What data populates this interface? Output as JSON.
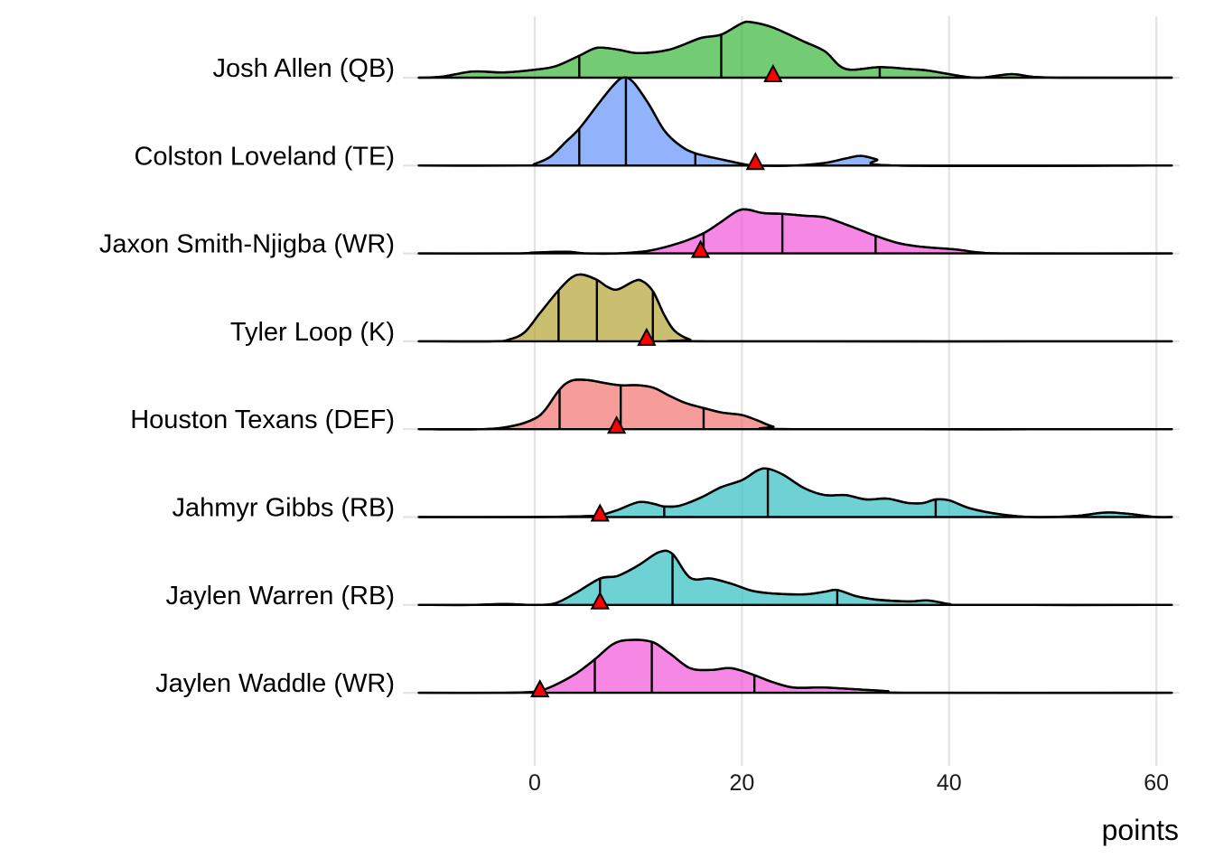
{
  "chart_data": {
    "type": "ridgeline-density",
    "title": "",
    "xlabel": "points",
    "ylabel": "",
    "xlim": [
      -11.2,
      61.5
    ],
    "x_ticks": [
      0,
      20,
      40,
      60
    ],
    "x_tick_labels": [
      "0",
      "20",
      "40",
      "60"
    ],
    "grid": "vertical major gridlines",
    "legend": "none",
    "marker_shape": "triangle",
    "marker_color": "#ff0000",
    "series": [
      {
        "name": "Josh Allen (QB)",
        "color": "#44bb44",
        "quantiles": [
          4.3,
          18.0,
          33.3
        ],
        "marker": 23.0,
        "density": [
          [
            -11.2,
            0
          ],
          [
            -9,
            0.01
          ],
          [
            -6,
            0.07
          ],
          [
            -3,
            0.06
          ],
          [
            0,
            0.09
          ],
          [
            2,
            0.13
          ],
          [
            4.3,
            0.25
          ],
          [
            6,
            0.34
          ],
          [
            8,
            0.32
          ],
          [
            10,
            0.28
          ],
          [
            13,
            0.32
          ],
          [
            16,
            0.45
          ],
          [
            18,
            0.49
          ],
          [
            20,
            0.62
          ],
          [
            21,
            0.63
          ],
          [
            23,
            0.57
          ],
          [
            26,
            0.41
          ],
          [
            28,
            0.3
          ],
          [
            30,
            0.1
          ],
          [
            33.3,
            0.12
          ],
          [
            36,
            0.1
          ],
          [
            38,
            0.08
          ],
          [
            41,
            0.02
          ],
          [
            43,
            0.0
          ],
          [
            46,
            0.04
          ],
          [
            48,
            0.01
          ],
          [
            51,
            0
          ],
          [
            61.5,
            0
          ]
        ]
      },
      {
        "name": "Colston Loveland (TE)",
        "color": "#6c99f9",
        "quantiles": [
          4.3,
          8.8,
          15.5
        ],
        "marker": 21.3,
        "density": [
          [
            -11.2,
            0
          ],
          [
            -1,
            0
          ],
          [
            0,
            0.02
          ],
          [
            1.5,
            0.1
          ],
          [
            3,
            0.27
          ],
          [
            4.3,
            0.42
          ],
          [
            6,
            0.68
          ],
          [
            7.5,
            0.9
          ],
          [
            8.5,
            1.0
          ],
          [
            9.5,
            0.95
          ],
          [
            11,
            0.7
          ],
          [
            12.5,
            0.4
          ],
          [
            14,
            0.23
          ],
          [
            15.5,
            0.14
          ],
          [
            18,
            0.07
          ],
          [
            20,
            0.02
          ],
          [
            21.3,
            0
          ],
          [
            25,
            0.0
          ],
          [
            28,
            0.03
          ],
          [
            30,
            0.08
          ],
          [
            31.5,
            0.11
          ],
          [
            33,
            0.07
          ],
          [
            35,
            0.0
          ],
          [
            61.5,
            0
          ]
        ]
      },
      {
        "name": "Jaxon Smith-Njigba (WR)",
        "color": "#f35fdc",
        "quantiles": [
          16.3,
          23.9,
          32.9
        ],
        "marker": 16.0,
        "density": [
          [
            -11.2,
            0
          ],
          [
            -2,
            0
          ],
          [
            0,
            0.01
          ],
          [
            3,
            0.02
          ],
          [
            5,
            0.0
          ],
          [
            8,
            0.0
          ],
          [
            11,
            0.03
          ],
          [
            14,
            0.12
          ],
          [
            16.3,
            0.23
          ],
          [
            18,
            0.36
          ],
          [
            19.5,
            0.48
          ],
          [
            20.5,
            0.5
          ],
          [
            22,
            0.46
          ],
          [
            23.9,
            0.45
          ],
          [
            26,
            0.43
          ],
          [
            28,
            0.41
          ],
          [
            30,
            0.33
          ],
          [
            32,
            0.24
          ],
          [
            32.9,
            0.2
          ],
          [
            35,
            0.12
          ],
          [
            37,
            0.08
          ],
          [
            39,
            0.06
          ],
          [
            41,
            0.04
          ],
          [
            43,
            0.01
          ],
          [
            46,
            0
          ],
          [
            61.5,
            0
          ]
        ]
      },
      {
        "name": "Tyler Loop (K)",
        "color": "#b8a840",
        "quantiles": [
          2.3,
          6.0,
          11.4
        ],
        "marker": 10.8,
        "density": [
          [
            -11.2,
            0
          ],
          [
            -4,
            0
          ],
          [
            -2.5,
            0.02
          ],
          [
            -1,
            0.1
          ],
          [
            0.5,
            0.32
          ],
          [
            2.3,
            0.58
          ],
          [
            3.5,
            0.72
          ],
          [
            4.5,
            0.76
          ],
          [
            6,
            0.7
          ],
          [
            7,
            0.62
          ],
          [
            8,
            0.59
          ],
          [
            9.5,
            0.68
          ],
          [
            10.3,
            0.69
          ],
          [
            11.4,
            0.57
          ],
          [
            12.5,
            0.3
          ],
          [
            13.5,
            0.12
          ],
          [
            15,
            0.02
          ],
          [
            16.5,
            0
          ],
          [
            61.5,
            0
          ]
        ]
      },
      {
        "name": "Houston Texans (DEF)",
        "color": "#f47c77",
        "quantiles": [
          2.4,
          8.3,
          16.3
        ],
        "marker": 7.9,
        "density": [
          [
            -11.2,
            0
          ],
          [
            -5,
            0
          ],
          [
            -2,
            0.04
          ],
          [
            0,
            0.12
          ],
          [
            1,
            0.22
          ],
          [
            2.4,
            0.45
          ],
          [
            3.5,
            0.55
          ],
          [
            5,
            0.56
          ],
          [
            7,
            0.52
          ],
          [
            8.3,
            0.5
          ],
          [
            10,
            0.5
          ],
          [
            11.5,
            0.47
          ],
          [
            13,
            0.38
          ],
          [
            14.5,
            0.3
          ],
          [
            16.3,
            0.24
          ],
          [
            18,
            0.19
          ],
          [
            20,
            0.16
          ],
          [
            21.5,
            0.1
          ],
          [
            23,
            0.03
          ],
          [
            25,
            0
          ],
          [
            61.5,
            0
          ]
        ]
      },
      {
        "name": "Jahmyr Gibbs (RB)",
        "color": "#3ec1c4",
        "quantiles": [
          12.5,
          22.5,
          38.7
        ],
        "marker": 6.3,
        "density": [
          [
            -11.2,
            0
          ],
          [
            0,
            0.0
          ],
          [
            5,
            0.01
          ],
          [
            6.3,
            0.02
          ],
          [
            8,
            0.08
          ],
          [
            10,
            0.17
          ],
          [
            11.5,
            0.15
          ],
          [
            12.5,
            0.12
          ],
          [
            14,
            0.13
          ],
          [
            16,
            0.22
          ],
          [
            18,
            0.34
          ],
          [
            20,
            0.42
          ],
          [
            21.5,
            0.53
          ],
          [
            22.5,
            0.55
          ],
          [
            24,
            0.48
          ],
          [
            26,
            0.33
          ],
          [
            28,
            0.25
          ],
          [
            30,
            0.25
          ],
          [
            32,
            0.2
          ],
          [
            34,
            0.21
          ],
          [
            36,
            0.16
          ],
          [
            37.5,
            0.16
          ],
          [
            38.7,
            0.2
          ],
          [
            40,
            0.19
          ],
          [
            42,
            0.1
          ],
          [
            45,
            0.03
          ],
          [
            48,
            0.0
          ],
          [
            52,
            0.01
          ],
          [
            55,
            0.05
          ],
          [
            57,
            0.04
          ],
          [
            60,
            0
          ],
          [
            61.5,
            0
          ]
        ]
      },
      {
        "name": "Jaylen Warren (RB)",
        "color": "#3ec1c4",
        "quantiles": [
          6.3,
          13.3,
          29.2
        ],
        "marker": 6.3,
        "density": [
          [
            -11.2,
            0
          ],
          [
            -6,
            0
          ],
          [
            -3,
            0.01
          ],
          [
            0,
            0.0
          ],
          [
            2,
            0.02
          ],
          [
            4,
            0.14
          ],
          [
            6.3,
            0.3
          ],
          [
            8,
            0.33
          ],
          [
            10,
            0.45
          ],
          [
            12,
            0.6
          ],
          [
            13.3,
            0.58
          ],
          [
            15,
            0.31
          ],
          [
            17,
            0.3
          ],
          [
            19,
            0.24
          ],
          [
            21,
            0.16
          ],
          [
            23,
            0.13
          ],
          [
            26,
            0.12
          ],
          [
            28,
            0.15
          ],
          [
            29.2,
            0.17
          ],
          [
            31,
            0.1
          ],
          [
            33,
            0.06
          ],
          [
            36,
            0.04
          ],
          [
            38,
            0.05
          ],
          [
            40,
            0.01
          ],
          [
            42,
            0
          ],
          [
            61.5,
            0
          ]
        ]
      },
      {
        "name": "Jaylen Waddle (WR)",
        "color": "#f35fdc",
        "quantiles": [
          5.8,
          11.3,
          21.2
        ],
        "marker": 0.5,
        "density": [
          [
            -11.2,
            0
          ],
          [
            -3,
            0
          ],
          [
            0,
            0.01
          ],
          [
            0.5,
            0.02
          ],
          [
            2,
            0.09
          ],
          [
            4,
            0.22
          ],
          [
            5.8,
            0.38
          ],
          [
            7.5,
            0.55
          ],
          [
            9,
            0.6
          ],
          [
            11.3,
            0.58
          ],
          [
            13,
            0.45
          ],
          [
            15,
            0.28
          ],
          [
            17,
            0.26
          ],
          [
            19,
            0.28
          ],
          [
            21.2,
            0.2
          ],
          [
            23,
            0.12
          ],
          [
            25,
            0.06
          ],
          [
            28,
            0.06
          ],
          [
            31,
            0.04
          ],
          [
            34,
            0.02
          ],
          [
            36,
            0
          ],
          [
            61.5,
            0
          ]
        ]
      }
    ]
  }
}
